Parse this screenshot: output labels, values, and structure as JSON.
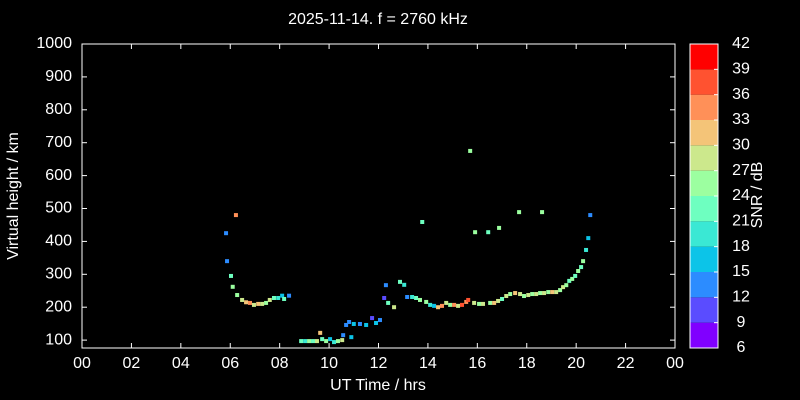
{
  "chart_data": {
    "type": "scatter",
    "title": "2025-11-14. f = 2760 kHz",
    "x_label": "UT Time / hrs",
    "y_label": "Virtual height / km",
    "xlim": [
      0,
      24
    ],
    "xticks": [
      {
        "value": 0,
        "label": "00"
      },
      {
        "value": 2,
        "label": "02"
      },
      {
        "value": 4,
        "label": "04"
      },
      {
        "value": 6,
        "label": "06"
      },
      {
        "value": 8,
        "label": "08"
      },
      10,
      12,
      14,
      16,
      18,
      20,
      22,
      {
        "value": 24,
        "label": "00"
      }
    ],
    "ylim": [
      76,
      1000
    ],
    "yticks": [
      100,
      200,
      300,
      400,
      500,
      600,
      700,
      800,
      900,
      1000
    ],
    "x": [
      5.83,
      6.23,
      5.87,
      6.03,
      6.1,
      6.28,
      6.48,
      6.64,
      6.8,
      6.96,
      7.13,
      7.29,
      7.45,
      7.6,
      7.77,
      7.94,
      8.1,
      8.18,
      8.38,
      8.87,
      9.03,
      9.19,
      9.35,
      9.51,
      9.64,
      9.72,
      9.88,
      10.04,
      10.2,
      10.36,
      10.53,
      10.57,
      10.69,
      10.81,
      10.9,
      11.0,
      11.25,
      11.5,
      11.74,
      11.9,
      12.06,
      12.23,
      12.3,
      12.39,
      12.63,
      12.87,
      13.04,
      13.16,
      13.36,
      13.52,
      13.68,
      13.77,
      13.93,
      14.09,
      14.25,
      14.41,
      14.57,
      14.74,
      14.9,
      15.06,
      15.22,
      15.38,
      15.55,
      15.63,
      15.71,
      15.87,
      15.91,
      16.07,
      16.23,
      16.44,
      16.52,
      16.68,
      16.88,
      16.84,
      17.0,
      17.17,
      17.33,
      17.53,
      17.69,
      17.73,
      17.89,
      18.06,
      18.22,
      18.38,
      18.62,
      18.54,
      18.7,
      18.87,
      19.03,
      19.19,
      19.35,
      19.47,
      19.6,
      19.72,
      19.84,
      19.96,
      20.08,
      20.2,
      20.28,
      20.4,
      20.49,
      20.57
    ],
    "values": [
      425,
      480,
      340,
      295,
      262,
      237,
      222,
      215,
      213,
      207,
      210,
      210,
      213,
      222,
      228,
      228,
      235,
      225,
      235,
      97,
      97,
      97,
      97,
      97,
      122,
      103,
      97,
      103,
      94,
      97,
      100,
      115,
      146,
      155,
      109,
      149,
      149,
      146,
      167,
      152,
      161,
      228,
      267,
      213,
      200,
      277,
      268,
      231,
      231,
      228,
      222,
      459,
      216,
      207,
      204,
      200,
      204,
      213,
      207,
      207,
      204,
      207,
      216,
      222,
      675,
      213,
      428,
      210,
      210,
      428,
      213,
      213,
      441,
      219,
      225,
      234,
      240,
      243,
      489,
      240,
      234,
      237,
      240,
      240,
      489,
      243,
      243,
      246,
      246,
      246,
      252,
      261,
      267,
      280,
      286,
      295,
      310,
      322,
      340,
      374,
      410,
      480
    ],
    "snr": [
      12,
      33,
      12,
      21,
      24,
      24,
      27,
      30,
      33,
      27,
      30,
      27,
      24,
      27,
      21,
      18,
      15,
      21,
      12,
      21,
      18,
      24,
      21,
      27,
      30,
      21,
      24,
      15,
      18,
      24,
      27,
      12,
      12,
      12,
      15,
      15,
      12,
      15,
      9,
      15,
      12,
      9,
      12,
      21,
      27,
      21,
      18,
      12,
      18,
      21,
      24,
      21,
      24,
      18,
      15,
      30,
      33,
      27,
      24,
      33,
      27,
      36,
      33,
      36,
      24,
      27,
      24,
      24,
      27,
      21,
      24,
      30,
      24,
      27,
      21,
      27,
      24,
      30,
      24,
      27,
      24,
      27,
      24,
      27,
      24,
      24,
      27,
      24,
      30,
      27,
      24,
      27,
      24,
      21,
      24,
      21,
      24,
      21,
      24,
      18,
      15,
      12
    ],
    "colorbar": {
      "label": "SNR / dB",
      "lim": [
        6,
        42
      ],
      "ticks": [
        6,
        9,
        12,
        15,
        18,
        21,
        24,
        27,
        30,
        33,
        36,
        39,
        42
      ],
      "colors": [
        "#8000ff",
        "#5a4cff",
        "#2c8cff",
        "#0cc4e8",
        "#3ae8d4",
        "#6effc0",
        "#9cffa0",
        "#cce88c",
        "#f4c478",
        "#ff9058",
        "#ff5230",
        "#ff0000"
      ]
    }
  }
}
